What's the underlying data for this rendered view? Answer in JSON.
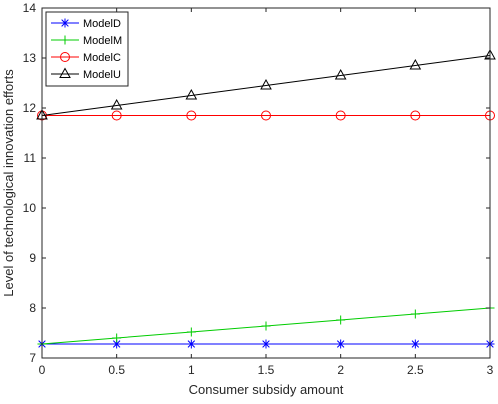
{
  "chart_data": {
    "type": "line",
    "title": "",
    "xlabel": "Consumer subsidy amount",
    "ylabel": "Level of technological innovation efforts",
    "xlim": [
      0,
      3
    ],
    "ylim": [
      7,
      14
    ],
    "xticks": [
      0,
      0.5,
      1,
      1.5,
      2,
      2.5,
      3
    ],
    "yticks": [
      7,
      8,
      9,
      10,
      11,
      12,
      13,
      14
    ],
    "x": [
      0,
      0.5,
      1,
      1.5,
      2,
      2.5,
      3
    ],
    "grid": false,
    "legend_position": "top-left",
    "series": [
      {
        "name": "ModelD",
        "color": "#0000ff",
        "marker": "asterisk",
        "values": [
          7.28,
          7.28,
          7.28,
          7.28,
          7.28,
          7.28,
          7.28
        ]
      },
      {
        "name": "ModelM",
        "color": "#00cc00",
        "marker": "plus",
        "values": [
          7.28,
          7.4,
          7.52,
          7.64,
          7.76,
          7.88,
          8.0
        ]
      },
      {
        "name": "ModelC",
        "color": "#ff0000",
        "marker": "circle",
        "values": [
          11.85,
          11.85,
          11.85,
          11.85,
          11.85,
          11.85,
          11.85
        ]
      },
      {
        "name": "ModelU",
        "color": "#000000",
        "marker": "triangle",
        "values": [
          11.85,
          12.05,
          12.25,
          12.45,
          12.65,
          12.85,
          13.05
        ]
      }
    ]
  }
}
